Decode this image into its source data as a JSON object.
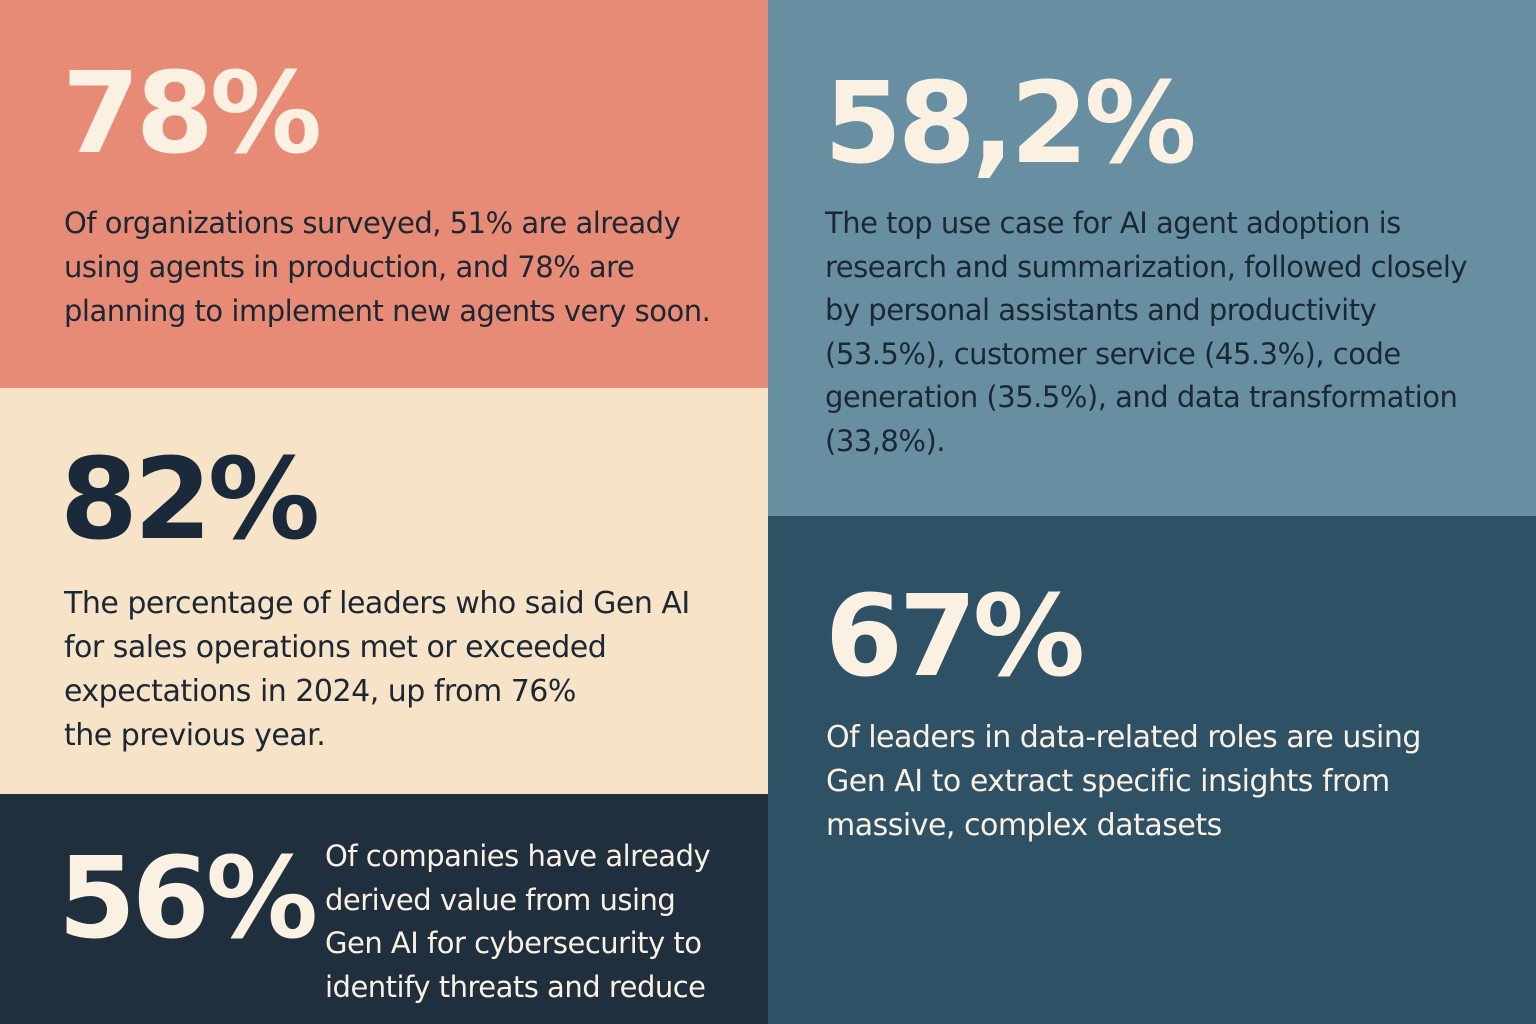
{
  "panels": {
    "p1": {
      "stat": "78%",
      "lines": [
        "Of organizations surveyed, 51% are already",
        "using agents in production, and 78% are",
        "planning to implement new agents very soon."
      ],
      "background": "#e88b76"
    },
    "p2": {
      "stat": "82%",
      "lines": [
        "The percentage of leaders who said Gen AI",
        "for sales operations met or exceeded",
        "expectations in 2024, up from 76%",
        "the previous year."
      ],
      "background": "#f7e4c8"
    },
    "p3": {
      "stat": "56%",
      "lines": [
        "Of companies have already",
        "derived value from using",
        "Gen AI for cybersecurity to",
        "identify threats and reduce"
      ],
      "background": "#1f2f3d"
    },
    "p4": {
      "stat": "58,2%",
      "lines": [
        "The top use case for AI agent adoption is",
        "research and summarization, followed closely",
        "by personal assistants and productivity",
        "(53.5%), customer service (45.3%), code",
        "generation (35.5%), and data transformation",
        "(33,8%)."
      ],
      "background": "#688fa1"
    },
    "p5": {
      "stat": "67%",
      "lines": [
        "Of leaders in data-related roles are using",
        "Gen AI to extract specific insights from",
        "massive, complex datasets"
      ],
      "background": "#2e5166"
    }
  }
}
